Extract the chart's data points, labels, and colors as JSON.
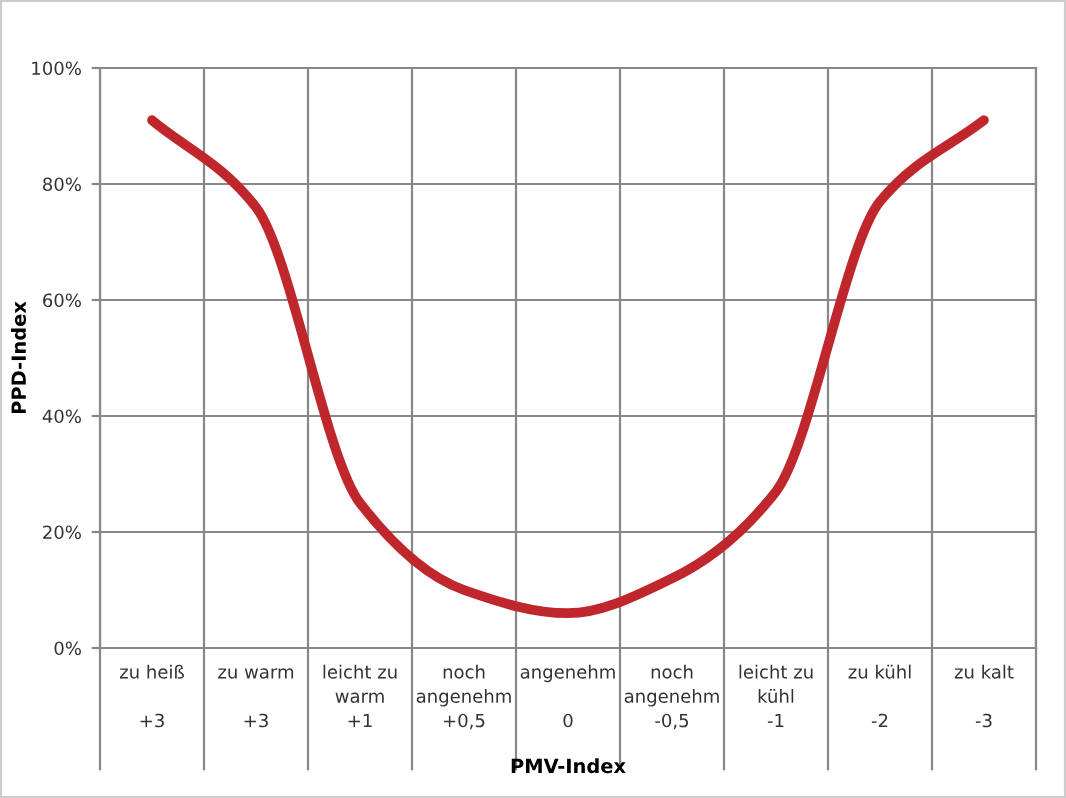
{
  "chart_data": {
    "type": "line",
    "xlabel": "PMV-Index",
    "ylabel": "PPD-Index",
    "categories": [
      "zu heiß\n\n+3",
      "zu warm\n\n+3",
      "leicht zu\nwarm\n+1",
      "noch\nangenehm\n+0,5",
      "angenehm\n\n0",
      "noch\nangenehm\n-0,5",
      "leicht zu\nkühl\n-1",
      "zu kühl\n\n-2",
      "zu kalt\n\n-3"
    ],
    "series": [
      {
        "color": "#c0272d",
        "values": [
          91,
          76,
          25,
          10,
          6,
          12,
          27,
          77,
          91
        ]
      }
    ],
    "ylim": [
      0,
      100
    ],
    "yticks": [
      {
        "value": 0,
        "label": "0%"
      },
      {
        "value": 20,
        "label": "20%"
      },
      {
        "value": 40,
        "label": "40%"
      },
      {
        "value": 60,
        "label": "60%"
      },
      {
        "value": 80,
        "label": "80%"
      },
      {
        "value": 100,
        "label": "100%"
      }
    ],
    "grid": true,
    "line_style": "solid",
    "marker": "none"
  }
}
